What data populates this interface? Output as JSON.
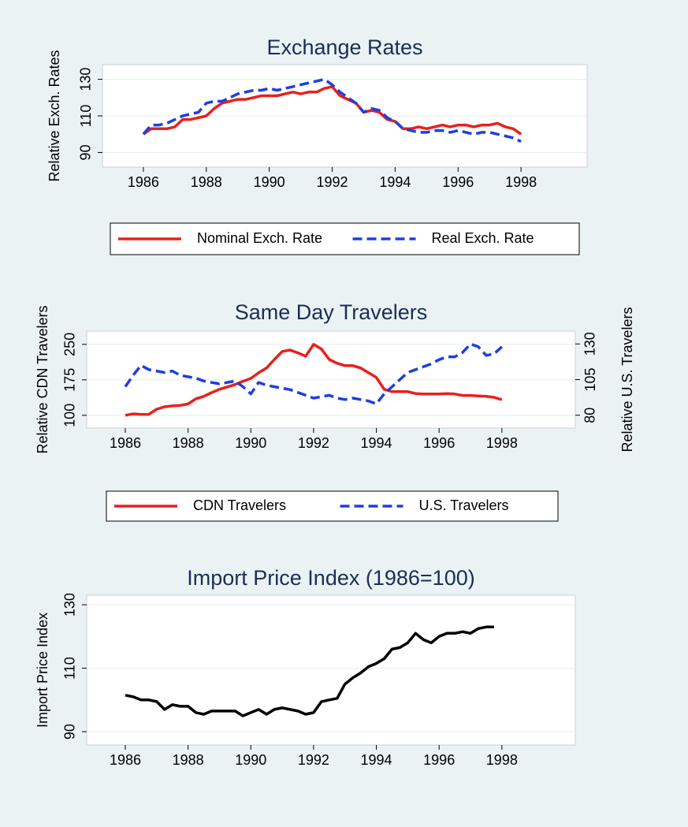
{
  "chart_data": [
    {
      "type": "line",
      "title": "Exchange Rates",
      "ylabel": "Relative Exch. Rates",
      "x": [
        1986,
        1986.25,
        1986.5,
        1986.75,
        1987,
        1987.25,
        1987.5,
        1987.75,
        1988,
        1988.25,
        1988.5,
        1988.75,
        1989,
        1989.25,
        1989.5,
        1989.75,
        1990,
        1990.25,
        1990.5,
        1990.75,
        1991,
        1991.25,
        1991.5,
        1991.75,
        1992,
        1992.25,
        1992.5,
        1992.75,
        1993,
        1993.25,
        1993.5,
        1993.75,
        1994,
        1994.25,
        1994.5,
        1994.75,
        1995,
        1995.25,
        1995.5,
        1995.75,
        1996,
        1996.25,
        1996.5,
        1996.75,
        1997,
        1997.25,
        1997.5,
        1997.75,
        1998
      ],
      "series": [
        {
          "name": "Nominal Exch. Rate",
          "color": "#e8201c",
          "style": "solid",
          "values": [
            100,
            103,
            103,
            103,
            104,
            108,
            108,
            109,
            110,
            114,
            117,
            118,
            119,
            119,
            120,
            121,
            121,
            121,
            122,
            123,
            122,
            123,
            123,
            125,
            126,
            121,
            119,
            117,
            112,
            113,
            112,
            108,
            107,
            103,
            103,
            104,
            103,
            104,
            105,
            104,
            105,
            105,
            104,
            105,
            105,
            106,
            104,
            103,
            100
          ]
        },
        {
          "name": "Real Exch. Rate",
          "color": "#1f3fe0",
          "style": "dashed",
          "values": [
            100,
            105,
            105,
            106,
            108,
            110,
            111,
            112,
            117,
            118,
            118,
            120,
            122,
            123,
            124,
            124,
            125,
            124,
            125,
            126,
            127,
            128,
            129,
            130,
            127,
            123,
            120,
            117,
            112,
            114,
            113,
            109,
            107,
            103,
            102,
            101,
            101,
            102,
            102,
            101,
            102,
            101,
            100,
            101,
            101,
            100,
            99,
            98,
            96
          ]
        }
      ],
      "xlim": [
        1984.7,
        2000.1
      ],
      "xticks": [
        1986,
        1988,
        1990,
        1992,
        1994,
        1996,
        1998
      ],
      "ylim": [
        82,
        138
      ],
      "yticks": [
        90,
        110,
        130
      ],
      "grid": true,
      "legend": "bottom"
    },
    {
      "type": "line",
      "title": "Same Day Travelers",
      "ylabel": "Relative CDN Travelers",
      "y2label": "Relative U.S. Travelers",
      "x": [
        1986,
        1986.25,
        1986.5,
        1986.75,
        1987,
        1987.25,
        1987.5,
        1987.75,
        1988,
        1988.25,
        1988.5,
        1988.75,
        1989,
        1989.25,
        1989.5,
        1989.75,
        1990,
        1990.25,
        1990.5,
        1990.75,
        1991,
        1991.25,
        1991.5,
        1991.75,
        1992,
        1992.25,
        1992.5,
        1992.75,
        1993,
        1993.25,
        1993.5,
        1993.75,
        1994,
        1994.25,
        1994.5,
        1994.75,
        1995,
        1995.25,
        1995.5,
        1995.75,
        1996,
        1996.25,
        1996.5,
        1996.75,
        1997,
        1997.25,
        1997.5,
        1997.75,
        1998
      ],
      "series": [
        {
          "name": "CDN Travelers",
          "color": "#e8201c",
          "style": "solid",
          "values": [
            100,
            103,
            102,
            102,
            113,
            118,
            120,
            121,
            124,
            135,
            140,
            148,
            155,
            160,
            165,
            172,
            178,
            190,
            200,
            218,
            235,
            238,
            232,
            225,
            250,
            240,
            218,
            210,
            205,
            205,
            200,
            190,
            180,
            155,
            150,
            150,
            150,
            146,
            145,
            145,
            145,
            146,
            145,
            142,
            142,
            141,
            140,
            138,
            133
          ]
        },
        {
          "name": "U.S. Travelers",
          "color": "#1f3fe0",
          "style": "dashed",
          "axis": "y2",
          "values": [
            100,
            108,
            115,
            112,
            111,
            110,
            111,
            108,
            107,
            106,
            104,
            103,
            102,
            103,
            104,
            100,
            95,
            103,
            101,
            100,
            99,
            98,
            96,
            94,
            92,
            93,
            94,
            92,
            91,
            92,
            91,
            90,
            88,
            95,
            100,
            105,
            110,
            112,
            114,
            116,
            119,
            121,
            121,
            124,
            130,
            128,
            122,
            123,
            128
          ]
        }
      ],
      "xlim": [
        1984.77,
        2000.34
      ],
      "xticks": [
        1986,
        1988,
        1990,
        1992,
        1994,
        1996,
        1998
      ],
      "ylim": [
        73,
        278
      ],
      "yticks": [
        100,
        175,
        250
      ],
      "y2lim": [
        71,
        139
      ],
      "y2ticks": [
        80,
        105,
        130
      ],
      "grid": true,
      "legend": "bottom"
    },
    {
      "type": "line",
      "title": "Import Price Index (1986=100)",
      "ylabel": "Import Price Index",
      "x": [
        1986,
        1986.25,
        1986.5,
        1986.75,
        1987,
        1987.25,
        1987.5,
        1987.75,
        1988,
        1988.25,
        1988.5,
        1988.75,
        1989,
        1989.25,
        1989.5,
        1989.75,
        1990,
        1990.25,
        1990.5,
        1990.75,
        1991,
        1991.25,
        1991.5,
        1991.75,
        1992,
        1992.25,
        1992.5,
        1992.75,
        1993,
        1993.25,
        1993.5,
        1993.75,
        1994,
        1994.25,
        1994.5,
        1994.75,
        1995,
        1995.25,
        1995.5,
        1995.75,
        1996,
        1996.25,
        1996.5,
        1996.75,
        1997,
        1997.25,
        1997.5,
        1997.75
      ],
      "series": [
        {
          "name": "Import Price Index",
          "color": "#000000",
          "style": "solid",
          "values": [
            101.5,
            101,
            100,
            100,
            99.5,
            97,
            98.5,
            98,
            98,
            96,
            95.5,
            96.5,
            96.5,
            96.5,
            96.5,
            95,
            96,
            97,
            95.5,
            97,
            97.5,
            97,
            96.5,
            95.5,
            96,
            99.5,
            100,
            100.5,
            105,
            107,
            108.5,
            110.5,
            111.5,
            113,
            116,
            116.5,
            118,
            121,
            119,
            118,
            120,
            121,
            121,
            121.5,
            121,
            122.5,
            123,
            123
          ]
        }
      ],
      "xlim": [
        1984.77,
        2000.34
      ],
      "xticks": [
        1986,
        1988,
        1990,
        1992,
        1994,
        1996,
        1998
      ],
      "ylim": [
        85.8,
        133
      ],
      "yticks": [
        90,
        110,
        130
      ],
      "grid": true
    }
  ]
}
